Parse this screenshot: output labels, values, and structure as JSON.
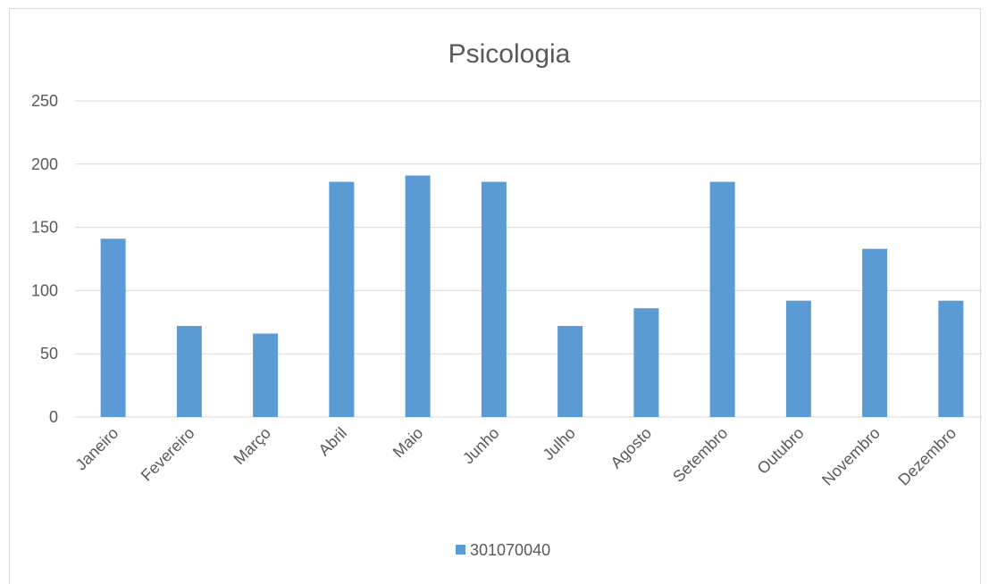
{
  "chart_data": {
    "type": "bar",
    "title": "Psicologia",
    "xlabel": "",
    "ylabel": "",
    "categories": [
      "Janeiro",
      "Fevereiro",
      "Março",
      "Abril",
      "Maio",
      "Junho",
      "Julho",
      "Agosto",
      "Setembro",
      "Outubro",
      "Novembro",
      "Dezembro"
    ],
    "series": [
      {
        "name": "301070040",
        "values": [
          141,
          72,
          66,
          186,
          191,
          186,
          72,
          86,
          186,
          92,
          133,
          92
        ]
      }
    ],
    "ylim": [
      0,
      250
    ],
    "yticks": [
      0,
      50,
      100,
      150,
      200,
      250
    ],
    "grid": true,
    "legend_position": "bottom",
    "colors": {
      "bar": "#5b9bd5",
      "gridline": "#d9d9d9",
      "text": "#595959",
      "frame": "#d9d9d9"
    }
  }
}
